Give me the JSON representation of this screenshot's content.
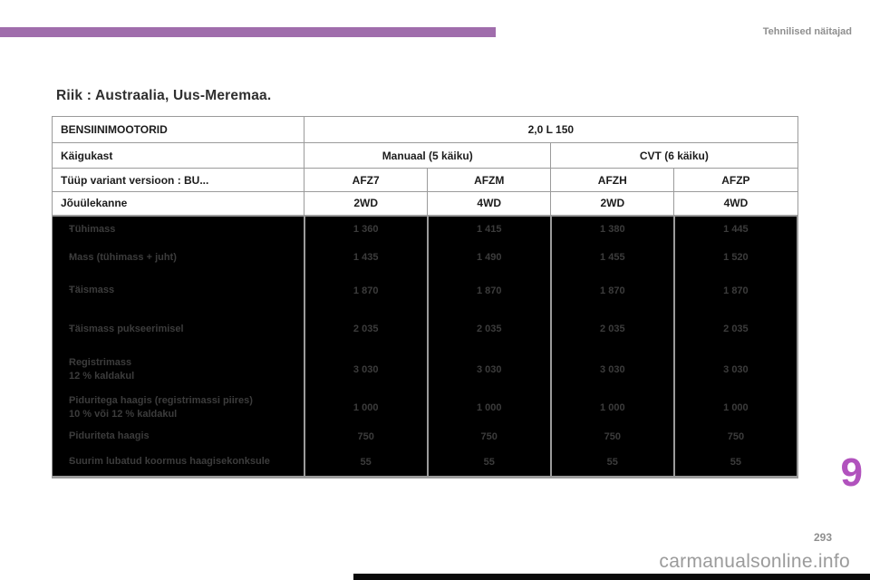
{
  "page": {
    "section_header": "Tehnilised näitajad",
    "chapter_number": "9",
    "page_number": "293",
    "watermark": "carmanualsonline.info",
    "accent_bar_color": "#a06dac",
    "chapter_number_color": "#b152bd",
    "body_zone_background": "#000000"
  },
  "title": "Riik : Austraalia, Uus-Meremaa.",
  "table": {
    "bullet": "-",
    "header": {
      "engine_label": "BENSIINIMOOTORID",
      "engine_value": "2,0 L 150",
      "gearbox_label": "Käigukast",
      "gearbox_values": [
        "Manuaal (5 käiku)",
        "CVT (6 käiku)"
      ],
      "type_label": "Tüüp variant versioon : BU...",
      "type_values": [
        "AFZ7",
        "AFZM",
        "AFZH",
        "AFZP"
      ],
      "transmission_label": "Jõuülekanne",
      "transmission_values": [
        "2WD",
        "4WD",
        "2WD",
        "4WD"
      ]
    },
    "rows": [
      {
        "label": "Tühimass",
        "label2": "",
        "values": [
          "1 360",
          "1 415",
          "1 380",
          "1 445"
        ]
      },
      {
        "label": "Mass (tühimass + juht)",
        "label2": "",
        "values": [
          "1 435",
          "1 490",
          "1 455",
          "1 520"
        ]
      },
      {
        "label": "Täismass",
        "label2": "",
        "values": [
          "1 870",
          "1 870",
          "1 870",
          "1 870"
        ]
      },
      {
        "label": "Täismass pukseerimisel",
        "label2": "",
        "values": [
          "2 035",
          "2 035",
          "2 035",
          "2 035"
        ]
      },
      {
        "label": "Registrimass",
        "label2": "12 % kaldakul",
        "values": [
          "3 030",
          "3 030",
          "3 030",
          "3 030"
        ]
      },
      {
        "label": "Piduritega haagis (registrimassi piires)",
        "label2": "10 % või 12 % kaldakul",
        "values": [
          "1 000",
          "1 000",
          "1 000",
          "1 000"
        ]
      },
      {
        "label": "Piduriteta haagis",
        "label2": "",
        "values": [
          "750",
          "750",
          "750",
          "750"
        ]
      },
      {
        "label": "Suurim lubatud koormus haagisekonksule",
        "label2": "",
        "values": [
          "55",
          "55",
          "55",
          "55"
        ]
      }
    ]
  }
}
